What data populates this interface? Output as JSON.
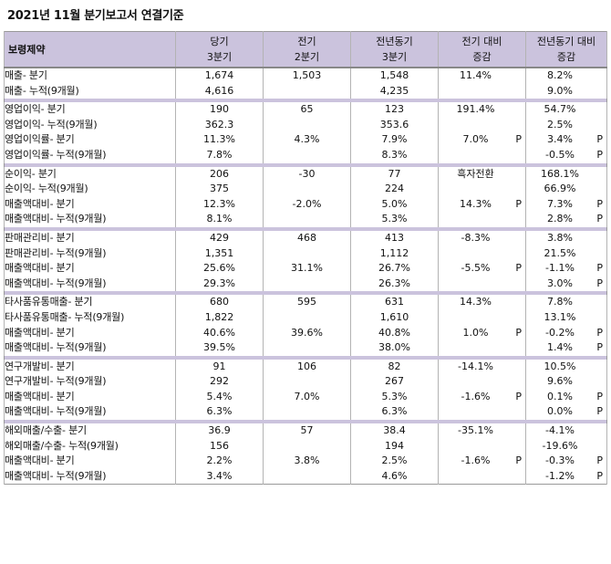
{
  "title": "2021년 11월 분기보고서 연결기준",
  "header": {
    "company": "보령제약",
    "cols": [
      {
        "l1": "당기",
        "l2": "3분기"
      },
      {
        "l1": "전기",
        "l2": "2분기"
      },
      {
        "l1": "전년동기",
        "l2": "3분기"
      },
      {
        "l1": "전기 대비",
        "l2": "증감"
      },
      {
        "l1": "전년동기 대비",
        "l2": "증감"
      }
    ]
  },
  "groups": [
    {
      "rows": [
        {
          "label": "매출- 분기",
          "cur": "1,674",
          "prev": "1,503",
          "yoy": "1,548",
          "qoq": "11.4%",
          "qoq_p": "",
          "yoyc": "8.2%",
          "yoyc_p": ""
        },
        {
          "label": "매출- 누적(9개월)",
          "cur": "4,616",
          "prev": "",
          "yoy": "4,235",
          "qoq": "",
          "qoq_p": "",
          "yoyc": "9.0%",
          "yoyc_p": ""
        }
      ]
    },
    {
      "rows": [
        {
          "label": "영업이익- 분기",
          "cur": "190",
          "prev": "65",
          "yoy": "123",
          "qoq": "191.4%",
          "qoq_p": "",
          "yoyc": "54.7%",
          "yoyc_p": ""
        },
        {
          "label": "영업이익- 누적(9개월)",
          "cur": "362.3",
          "prev": "",
          "yoy": "353.6",
          "qoq": "",
          "qoq_p": "",
          "yoyc": "2.5%",
          "yoyc_p": ""
        },
        {
          "label": "영업이익률- 분기",
          "cur": "11.3%",
          "prev": "4.3%",
          "yoy": "7.9%",
          "qoq": "7.0%",
          "qoq_p": "P",
          "yoyc": "3.4%",
          "yoyc_p": "P"
        },
        {
          "label": "영업이익률- 누적(9개월)",
          "cur": "7.8%",
          "prev": "",
          "yoy": "8.3%",
          "qoq": "",
          "qoq_p": "",
          "yoyc": "-0.5%",
          "yoyc_p": "P"
        }
      ]
    },
    {
      "rows": [
        {
          "label": "순이익- 분기",
          "cur": "206",
          "prev": "-30",
          "yoy": "77",
          "qoq": "흑자전환",
          "qoq_p": "",
          "yoyc": "168.1%",
          "yoyc_p": ""
        },
        {
          "label": "순이익- 누적(9개월)",
          "cur": "375",
          "prev": "",
          "yoy": "224",
          "qoq": "",
          "qoq_p": "",
          "yoyc": "66.9%",
          "yoyc_p": ""
        },
        {
          "label": "매출액대비- 분기",
          "cur": "12.3%",
          "prev": "-2.0%",
          "yoy": "5.0%",
          "qoq": "14.3%",
          "qoq_p": "P",
          "yoyc": "7.3%",
          "yoyc_p": "P"
        },
        {
          "label": "매출액대비- 누적(9개월)",
          "cur": "8.1%",
          "prev": "",
          "yoy": "5.3%",
          "qoq": "",
          "qoq_p": "",
          "yoyc": "2.8%",
          "yoyc_p": "P"
        }
      ]
    },
    {
      "rows": [
        {
          "label": "판매관리비- 분기",
          "cur": "429",
          "prev": "468",
          "yoy": "413",
          "qoq": "-8.3%",
          "qoq_p": "",
          "yoyc": "3.8%",
          "yoyc_p": ""
        },
        {
          "label": "판매관리비- 누적(9개월)",
          "cur": "1,351",
          "prev": "",
          "yoy": "1,112",
          "qoq": "",
          "qoq_p": "",
          "yoyc": "21.5%",
          "yoyc_p": ""
        },
        {
          "label": "매출액대비- 분기",
          "cur": "25.6%",
          "prev": "31.1%",
          "yoy": "26.7%",
          "qoq": "-5.5%",
          "qoq_p": "P",
          "yoyc": "-1.1%",
          "yoyc_p": "P"
        },
        {
          "label": "매출액대비- 누적(9개월)",
          "cur": "29.3%",
          "prev": "",
          "yoy": "26.3%",
          "qoq": "",
          "qoq_p": "",
          "yoyc": "3.0%",
          "yoyc_p": "P"
        }
      ]
    },
    {
      "rows": [
        {
          "label": "타사품유통매출- 분기",
          "cur": "680",
          "prev": "595",
          "yoy": "631",
          "qoq": "14.3%",
          "qoq_p": "",
          "yoyc": "7.8%",
          "yoyc_p": ""
        },
        {
          "label": "타사품유통매출- 누적(9개월)",
          "cur": "1,822",
          "prev": "",
          "yoy": "1,610",
          "qoq": "",
          "qoq_p": "",
          "yoyc": "13.1%",
          "yoyc_p": ""
        },
        {
          "label": "매출액대비- 분기",
          "cur": "40.6%",
          "prev": "39.6%",
          "yoy": "40.8%",
          "qoq": "1.0%",
          "qoq_p": "P",
          "yoyc": "-0.2%",
          "yoyc_p": "P"
        },
        {
          "label": "매출액대비- 누적(9개월)",
          "cur": "39.5%",
          "prev": "",
          "yoy": "38.0%",
          "qoq": "",
          "qoq_p": "",
          "yoyc": "1.4%",
          "yoyc_p": "P"
        }
      ]
    },
    {
      "rows": [
        {
          "label": "연구개발비- 분기",
          "cur": "91",
          "prev": "106",
          "yoy": "82",
          "qoq": "-14.1%",
          "qoq_p": "",
          "yoyc": "10.5%",
          "yoyc_p": ""
        },
        {
          "label": "연구개발비- 누적(9개월)",
          "cur": "292",
          "prev": "",
          "yoy": "267",
          "qoq": "",
          "qoq_p": "",
          "yoyc": "9.6%",
          "yoyc_p": ""
        },
        {
          "label": "매출액대비- 분기",
          "cur": "5.4%",
          "prev": "7.0%",
          "yoy": "5.3%",
          "qoq": "-1.6%",
          "qoq_p": "P",
          "yoyc": "0.1%",
          "yoyc_p": "P"
        },
        {
          "label": "매출액대비- 누적(9개월)",
          "cur": "6.3%",
          "prev": "",
          "yoy": "6.3%",
          "qoq": "",
          "qoq_p": "",
          "yoyc": "0.0%",
          "yoyc_p": "P"
        }
      ]
    },
    {
      "rows": [
        {
          "label": "해외매출/수출- 분기",
          "cur": "36.9",
          "prev": "57",
          "yoy": "38.4",
          "qoq": "-35.1%",
          "qoq_p": "",
          "yoyc": "-4.1%",
          "yoyc_p": ""
        },
        {
          "label": "해외매출/수출- 누적(9개월)",
          "cur": "156",
          "prev": "",
          "yoy": "194",
          "qoq": "",
          "qoq_p": "",
          "yoyc": "-19.6%",
          "yoyc_p": ""
        },
        {
          "label": "매출액대비- 분기",
          "cur": "2.2%",
          "prev": "3.8%",
          "yoy": "2.5%",
          "qoq": "-1.6%",
          "qoq_p": "P",
          "yoyc": "-0.3%",
          "yoyc_p": "P"
        },
        {
          "label": "매출액대비- 누적(9개월)",
          "cur": "3.4%",
          "prev": "",
          "yoy": "4.6%",
          "qoq": "",
          "qoq_p": "",
          "yoyc": "-1.2%",
          "yoyc_p": "P"
        }
      ]
    }
  ],
  "colors": {
    "header_bg": "#cbc3dd",
    "separator": "#cbc3dd"
  }
}
